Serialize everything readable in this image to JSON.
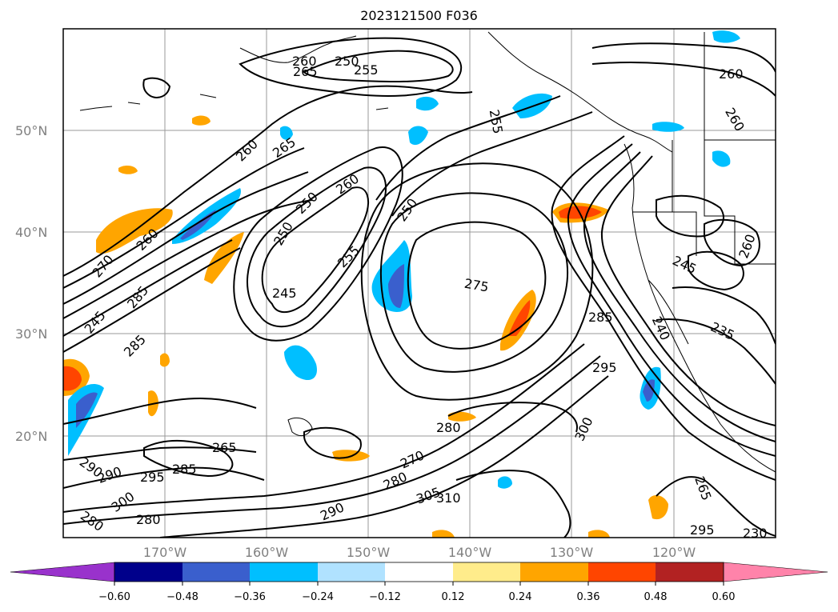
{
  "title": "2023121500 F036",
  "latitude_labels": [
    "50°N",
    "40°N",
    "30°N",
    "20°N"
  ],
  "longitude_labels": [
    "170°W",
    "160°W",
    "150°W",
    "140°W",
    "130°W",
    "120°W"
  ],
  "colorbar": {
    "ticks": [
      "−0.60",
      "−0.48",
      "−0.36",
      "−0.24",
      "−0.12",
      "0.12",
      "0.24",
      "0.36",
      "0.48",
      "0.60"
    ],
    "colors": [
      "#9932cc",
      "#00008b",
      "#3a5fcd",
      "#00bfff",
      "#b0e2ff",
      "#ffffff",
      "#ffec8b",
      "#ffa500",
      "#ff4500",
      "#b22222",
      "#ff83aa"
    ]
  },
  "contour_labels": [
    "260",
    "250",
    "265",
    "255",
    "260",
    "255",
    "260",
    "260",
    "265",
    "260",
    "250",
    "270",
    "250",
    "245",
    "250",
    "260",
    "285",
    "245",
    "255",
    "275",
    "285",
    "260",
    "240",
    "235",
    "245",
    "280",
    "285",
    "295",
    "270",
    "280",
    "290",
    "300",
    "305",
    "310",
    "290",
    "285",
    "265",
    "295",
    "295",
    "290",
    "300",
    "280",
    "265",
    "280",
    "230"
  ],
  "shaded_colors": {
    "neg_strong": "#3a5fcd",
    "neg_mid": "#00bfff",
    "neg_weak": "#b0e2ff",
    "pos_weak": "#ffec8b",
    "pos_mid": "#ffa500",
    "pos_strong": "#ff4500"
  }
}
